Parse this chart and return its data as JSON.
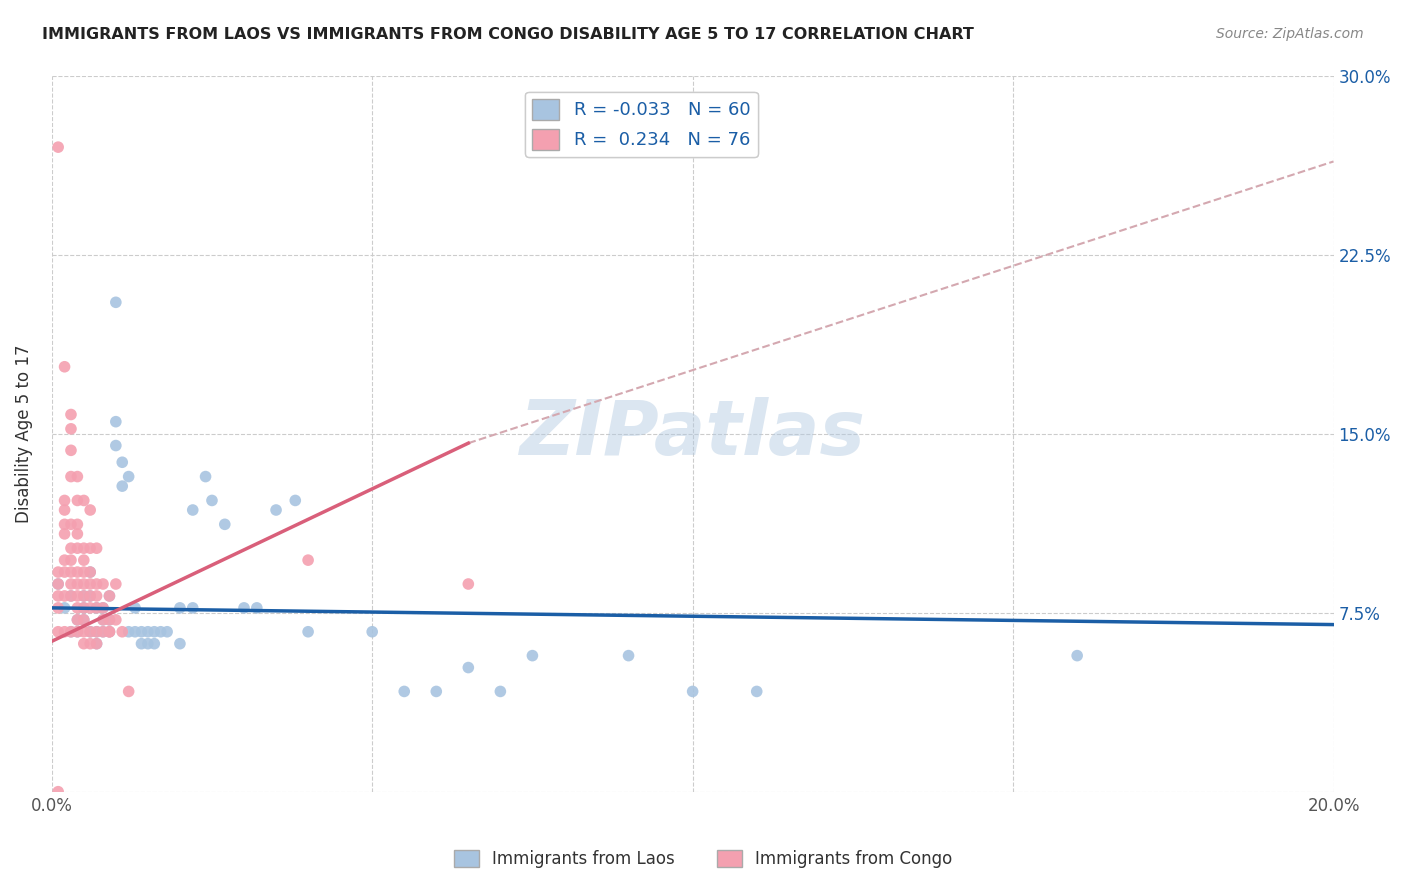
{
  "title": "IMMIGRANTS FROM LAOS VS IMMIGRANTS FROM CONGO DISABILITY AGE 5 TO 17 CORRELATION CHART",
  "source": "Source: ZipAtlas.com",
  "ylabel": "Disability Age 5 to 17",
  "x_min": 0.0,
  "x_max": 0.2,
  "y_min": 0.0,
  "y_max": 0.3,
  "x_ticks": [
    0.0,
    0.05,
    0.1,
    0.15,
    0.2
  ],
  "y_ticks": [
    0.0,
    0.075,
    0.15,
    0.225,
    0.3
  ],
  "watermark": "ZIPatlas",
  "laos_color": "#a8c4e0",
  "congo_color": "#f4a0b0",
  "laos_line_color": "#1b5ea6",
  "congo_line_color": "#d95f7a",
  "congo_dash_color": "#d4a8b0",
  "laos_trendline": [
    [
      0.0,
      0.077
    ],
    [
      0.2,
      0.07
    ]
  ],
  "congo_solid_trendline": [
    [
      0.0,
      0.063
    ],
    [
      0.065,
      0.146
    ]
  ],
  "congo_dashed_trendline": [
    [
      0.065,
      0.146
    ],
    [
      0.2,
      0.264
    ]
  ],
  "laos_points": [
    [
      0.001,
      0.087
    ],
    [
      0.002,
      0.077
    ],
    [
      0.003,
      0.082
    ],
    [
      0.003,
      0.067
    ],
    [
      0.004,
      0.072
    ],
    [
      0.004,
      0.067
    ],
    [
      0.005,
      0.082
    ],
    [
      0.005,
      0.077
    ],
    [
      0.005,
      0.072
    ],
    [
      0.006,
      0.067
    ],
    [
      0.006,
      0.082
    ],
    [
      0.006,
      0.092
    ],
    [
      0.007,
      0.077
    ],
    [
      0.007,
      0.067
    ],
    [
      0.007,
      0.062
    ],
    [
      0.008,
      0.072
    ],
    [
      0.008,
      0.067
    ],
    [
      0.008,
      0.077
    ],
    [
      0.009,
      0.082
    ],
    [
      0.009,
      0.072
    ],
    [
      0.009,
      0.067
    ],
    [
      0.01,
      0.205
    ],
    [
      0.01,
      0.155
    ],
    [
      0.01,
      0.145
    ],
    [
      0.011,
      0.138
    ],
    [
      0.011,
      0.128
    ],
    [
      0.012,
      0.132
    ],
    [
      0.012,
      0.067
    ],
    [
      0.013,
      0.077
    ],
    [
      0.013,
      0.067
    ],
    [
      0.014,
      0.067
    ],
    [
      0.014,
      0.062
    ],
    [
      0.015,
      0.067
    ],
    [
      0.015,
      0.062
    ],
    [
      0.016,
      0.067
    ],
    [
      0.016,
      0.062
    ],
    [
      0.017,
      0.067
    ],
    [
      0.018,
      0.067
    ],
    [
      0.02,
      0.077
    ],
    [
      0.02,
      0.062
    ],
    [
      0.022,
      0.118
    ],
    [
      0.022,
      0.077
    ],
    [
      0.024,
      0.132
    ],
    [
      0.025,
      0.122
    ],
    [
      0.027,
      0.112
    ],
    [
      0.03,
      0.077
    ],
    [
      0.032,
      0.077
    ],
    [
      0.035,
      0.118
    ],
    [
      0.038,
      0.122
    ],
    [
      0.04,
      0.067
    ],
    [
      0.05,
      0.067
    ],
    [
      0.055,
      0.042
    ],
    [
      0.06,
      0.042
    ],
    [
      0.065,
      0.052
    ],
    [
      0.07,
      0.042
    ],
    [
      0.075,
      0.057
    ],
    [
      0.09,
      0.057
    ],
    [
      0.1,
      0.042
    ],
    [
      0.11,
      0.042
    ],
    [
      0.16,
      0.057
    ]
  ],
  "congo_points": [
    [
      0.001,
      0.27
    ],
    [
      0.001,
      0.0
    ],
    [
      0.001,
      0.087
    ],
    [
      0.001,
      0.082
    ],
    [
      0.002,
      0.178
    ],
    [
      0.002,
      0.122
    ],
    [
      0.002,
      0.118
    ],
    [
      0.002,
      0.112
    ],
    [
      0.002,
      0.097
    ],
    [
      0.002,
      0.092
    ],
    [
      0.002,
      0.082
    ],
    [
      0.003,
      0.158
    ],
    [
      0.003,
      0.152
    ],
    [
      0.003,
      0.143
    ],
    [
      0.003,
      0.112
    ],
    [
      0.003,
      0.102
    ],
    [
      0.003,
      0.092
    ],
    [
      0.003,
      0.087
    ],
    [
      0.003,
      0.082
    ],
    [
      0.004,
      0.132
    ],
    [
      0.004,
      0.122
    ],
    [
      0.004,
      0.112
    ],
    [
      0.004,
      0.102
    ],
    [
      0.004,
      0.092
    ],
    [
      0.004,
      0.087
    ],
    [
      0.004,
      0.082
    ],
    [
      0.004,
      0.077
    ],
    [
      0.004,
      0.072
    ],
    [
      0.005,
      0.122
    ],
    [
      0.005,
      0.102
    ],
    [
      0.005,
      0.097
    ],
    [
      0.005,
      0.087
    ],
    [
      0.005,
      0.082
    ],
    [
      0.005,
      0.077
    ],
    [
      0.005,
      0.072
    ],
    [
      0.005,
      0.067
    ],
    [
      0.006,
      0.118
    ],
    [
      0.006,
      0.102
    ],
    [
      0.006,
      0.092
    ],
    [
      0.006,
      0.087
    ],
    [
      0.006,
      0.082
    ],
    [
      0.006,
      0.077
    ],
    [
      0.006,
      0.067
    ],
    [
      0.007,
      0.102
    ],
    [
      0.007,
      0.087
    ],
    [
      0.007,
      0.082
    ],
    [
      0.007,
      0.077
    ],
    [
      0.007,
      0.067
    ],
    [
      0.008,
      0.087
    ],
    [
      0.008,
      0.077
    ],
    [
      0.008,
      0.072
    ],
    [
      0.009,
      0.082
    ],
    [
      0.009,
      0.072
    ],
    [
      0.009,
      0.067
    ],
    [
      0.01,
      0.087
    ],
    [
      0.01,
      0.072
    ],
    [
      0.011,
      0.067
    ],
    [
      0.012,
      0.042
    ],
    [
      0.04,
      0.097
    ],
    [
      0.065,
      0.087
    ],
    [
      0.003,
      0.132
    ],
    [
      0.003,
      0.097
    ],
    [
      0.004,
      0.108
    ],
    [
      0.005,
      0.092
    ],
    [
      0.002,
      0.108
    ],
    [
      0.001,
      0.092
    ],
    [
      0.001,
      0.077
    ],
    [
      0.001,
      0.067
    ],
    [
      0.002,
      0.067
    ],
    [
      0.003,
      0.067
    ],
    [
      0.004,
      0.067
    ],
    [
      0.005,
      0.062
    ],
    [
      0.006,
      0.062
    ],
    [
      0.007,
      0.062
    ],
    [
      0.008,
      0.067
    ],
    [
      0.009,
      0.067
    ]
  ]
}
